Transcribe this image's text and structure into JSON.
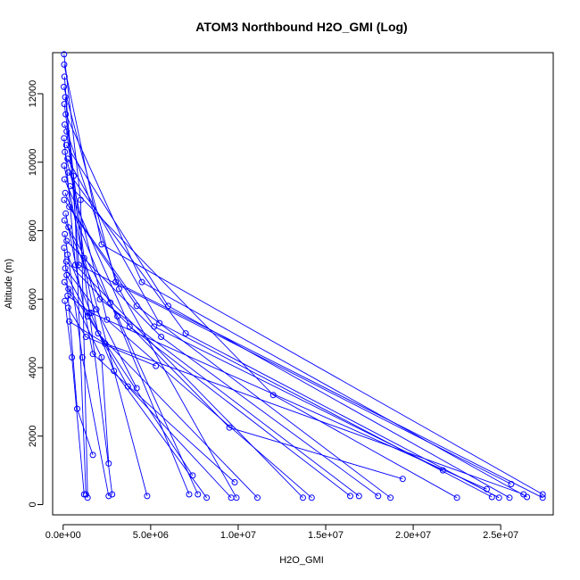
{
  "chart_data": {
    "type": "line",
    "title": "ATOM3 Northbound H2O_GMI (Log)",
    "xlabel": "H2O_GMI",
    "ylabel": "Altitude (m)",
    "xlim": [
      -600000,
      28000000
    ],
    "ylim": [
      -300,
      13200
    ],
    "x_ticks": [
      0,
      5000000,
      10000000,
      15000000,
      20000000,
      25000000
    ],
    "x_tick_labels": [
      "0.0e+00",
      "5.0e+06",
      "1.0e+07",
      "1.5e+07",
      "2.0e+07",
      "2.5e+07"
    ],
    "y_ticks": [
      0,
      2000,
      4000,
      6000,
      8000,
      10000,
      12000
    ],
    "y_tick_labels": [
      "0",
      "2000",
      "4000",
      "6000",
      "8000",
      "10000",
      "12000"
    ],
    "grid": false,
    "legend": "none",
    "marker": "open-circle",
    "color": "#0000ff",
    "series": [
      {
        "x": [
          50000,
          1000000,
          1400000
        ],
        "y": [
          13150,
          8900,
          200
        ]
      },
      {
        "x": [
          60000,
          2200000,
          27400000
        ],
        "y": [
          12850,
          7600,
          300
        ]
      },
      {
        "x": [
          80000,
          900000,
          25600000
        ],
        "y": [
          12500,
          7000,
          600
        ]
      },
      {
        "x": [
          40000,
          3000000,
          27400000
        ],
        "y": [
          12200,
          6500,
          200
        ]
      },
      {
        "x": [
          120000,
          600000,
          1300000
        ],
        "y": [
          11900,
          9600,
          300
        ]
      },
      {
        "x": [
          70000,
          1200000,
          4800000
        ],
        "y": [
          11700,
          7200,
          250
        ]
      },
      {
        "x": [
          150000,
          4500000,
          26500000
        ],
        "y": [
          11400,
          6500,
          220
        ]
      },
      {
        "x": [
          90000,
          3200000,
          9900000
        ],
        "y": [
          11100,
          6300,
          200
        ]
      },
      {
        "x": [
          200000,
          1500000,
          2800000
        ],
        "y": [
          10900,
          5600,
          300
        ]
      },
      {
        "x": [
          50000,
          700000,
          13700000
        ],
        "y": [
          10700,
          7000,
          200
        ]
      },
      {
        "x": [
          180000,
          6000000,
          25500000
        ],
        "y": [
          10500,
          5800,
          200
        ]
      },
      {
        "x": [
          100000,
          2500000,
          14200000
        ],
        "y": [
          10300,
          5400,
          200
        ]
      },
      {
        "x": [
          250000,
          5500000,
          24500000
        ],
        "y": [
          10100,
          5300,
          220
        ]
      },
      {
        "x": [
          60000,
          2000000,
          11100000
        ],
        "y": [
          9900,
          5000,
          200
        ]
      },
      {
        "x": [
          300000,
          7000000,
          24900000
        ],
        "y": [
          9700,
          5000,
          200
        ]
      },
      {
        "x": [
          80000,
          3800000,
          16400000
        ],
        "y": [
          9500,
          5200,
          250
        ]
      },
      {
        "x": [
          400000,
          12000000,
          22500000
        ],
        "y": [
          9300,
          3200,
          200
        ]
      },
      {
        "x": [
          120000,
          2700000,
          7200000
        ],
        "y": [
          9100,
          5900,
          300
        ]
      },
      {
        "x": [
          60000,
          4200000,
          18700000
        ],
        "y": [
          8900,
          5800,
          200
        ]
      },
      {
        "x": [
          350000,
          5200000,
          21700000
        ],
        "y": [
          8700,
          5200,
          1000
        ]
      },
      {
        "x": [
          150000,
          1700000,
          9800000
        ],
        "y": [
          8500,
          4400,
          650
        ]
      },
      {
        "x": [
          80000,
          2100000,
          16900000
        ],
        "y": [
          8300,
          6000,
          250
        ]
      },
      {
        "x": [
          300000,
          3100000,
          7700000
        ],
        "y": [
          8100,
          5500,
          300
        ]
      },
      {
        "x": [
          100000,
          1100000,
          2600000
        ],
        "y": [
          7900,
          4300,
          250
        ]
      },
      {
        "x": [
          200000,
          5600000,
          18000000
        ],
        "y": [
          7700,
          4900,
          250
        ]
      },
      {
        "x": [
          60000,
          800000,
          1700000
        ],
        "y": [
          7500,
          2800,
          1450
        ]
      },
      {
        "x": [
          250000,
          2900000,
          8200000
        ],
        "y": [
          7300,
          3900,
          200
        ]
      },
      {
        "x": [
          180000,
          9500000,
          19400000
        ],
        "y": [
          7100,
          2250,
          750
        ]
      },
      {
        "x": [
          120000,
          1900000,
          4200000
        ],
        "y": [
          6900,
          5700,
          3400
        ]
      },
      {
        "x": [
          200000,
          3700000,
          9600000
        ],
        "y": [
          6700,
          3450,
          200
        ]
      },
      {
        "x": [
          80000,
          1400000,
          7400000
        ],
        "y": [
          6500,
          5500,
          850
        ]
      },
      {
        "x": [
          300000,
          2200000,
          2600000
        ],
        "y": [
          6300,
          4300,
          1200
        ]
      },
      {
        "x": [
          250000,
          1600000,
          24200000
        ],
        "y": [
          6100,
          5600,
          450
        ]
      },
      {
        "x": [
          100000,
          500000,
          1200000
        ],
        "y": [
          5950,
          4300,
          300
        ]
      },
      {
        "x": [
          280000,
          1300000,
          5300000
        ],
        "y": [
          5750,
          4900,
          4050
        ]
      },
      {
        "x": [
          350000,
          2400000,
          26300000
        ],
        "y": [
          5350,
          4700,
          300
        ]
      }
    ]
  }
}
